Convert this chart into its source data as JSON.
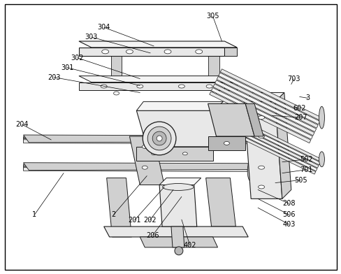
{
  "figsize": [
    4.89,
    3.92
  ],
  "dpi": 100,
  "bg": "#ffffff",
  "border": "#000000",
  "lc": "#1a1a1a",
  "gray1": "#e8e8e8",
  "gray2": "#d0d0d0",
  "gray3": "#b8b8b8",
  "gray4": "#f4f4f4",
  "labels": [
    [
      "304",
      148,
      38,
      218,
      68,
      "left"
    ],
    [
      "303",
      130,
      52,
      210,
      78,
      "left"
    ],
    [
      "305",
      305,
      22,
      318,
      55,
      "center"
    ],
    [
      "703",
      422,
      112,
      378,
      132,
      "left"
    ],
    [
      "3",
      442,
      140,
      400,
      148,
      "left"
    ],
    [
      "602",
      430,
      155,
      392,
      160,
      "left"
    ],
    [
      "207",
      432,
      168,
      382,
      172,
      "left"
    ],
    [
      "302",
      110,
      82,
      195,
      108,
      "left"
    ],
    [
      "301",
      95,
      96,
      190,
      118,
      "left"
    ],
    [
      "203",
      76,
      110,
      185,
      128,
      "left"
    ],
    [
      "204",
      30,
      178,
      68,
      198,
      "left"
    ],
    [
      "502",
      440,
      228,
      400,
      238,
      "left"
    ],
    [
      "701",
      440,
      243,
      400,
      252,
      "left"
    ],
    [
      "505",
      432,
      258,
      392,
      268,
      "left"
    ],
    [
      "208",
      415,
      292,
      368,
      278,
      "left"
    ],
    [
      "506",
      415,
      308,
      368,
      293,
      "left"
    ],
    [
      "403",
      415,
      322,
      368,
      308,
      "left"
    ],
    [
      "1",
      48,
      308,
      85,
      255,
      "left"
    ],
    [
      "2",
      162,
      308,
      208,
      258,
      "left"
    ],
    [
      "201",
      192,
      316,
      232,
      272,
      "left"
    ],
    [
      "202",
      214,
      316,
      245,
      278,
      "left"
    ],
    [
      "206",
      218,
      338,
      258,
      285,
      "left"
    ],
    [
      "402",
      272,
      352,
      272,
      320,
      "center"
    ]
  ]
}
